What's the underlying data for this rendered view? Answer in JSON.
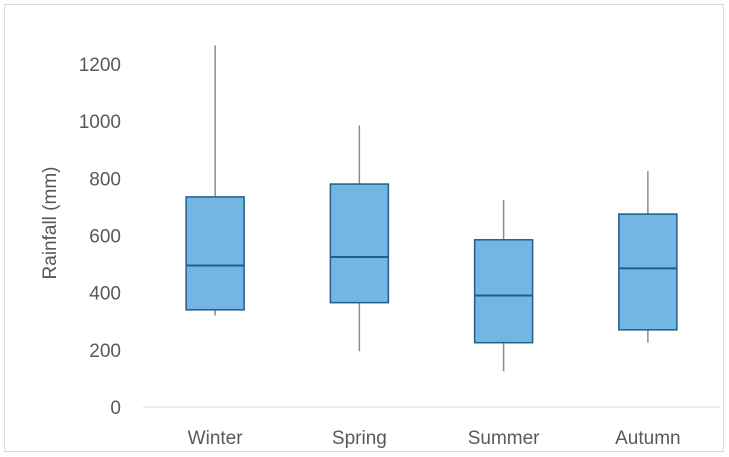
{
  "chart_data": {
    "type": "box",
    "title": "",
    "xlabel": "",
    "ylabel": "Rainfall (mm)",
    "ylim": [
      0,
      1200
    ],
    "y_ticks": [
      0,
      200,
      400,
      600,
      800,
      1000,
      1200
    ],
    "grid": false,
    "legend": "none",
    "categories": [
      "Winter",
      "Spring",
      "Summer",
      "Autumn"
    ],
    "boxes": [
      {
        "category": "Winter",
        "min": 320,
        "q1": 340,
        "median": 495,
        "q3": 735,
        "max": 1265
      },
      {
        "category": "Spring",
        "min": 195,
        "q1": 365,
        "median": 525,
        "q3": 780,
        "max": 985
      },
      {
        "category": "Summer",
        "min": 125,
        "q1": 225,
        "median": 390,
        "q3": 585,
        "max": 725
      },
      {
        "category": "Autumn",
        "min": 225,
        "q1": 270,
        "median": 485,
        "q3": 675,
        "max": 825
      }
    ],
    "colors": {
      "box_fill": "#74b5e3",
      "box_stroke": "#1f5f8b",
      "whisker": "#8c8c8c",
      "axis": "#d9d9d9",
      "text": "#595959"
    }
  }
}
